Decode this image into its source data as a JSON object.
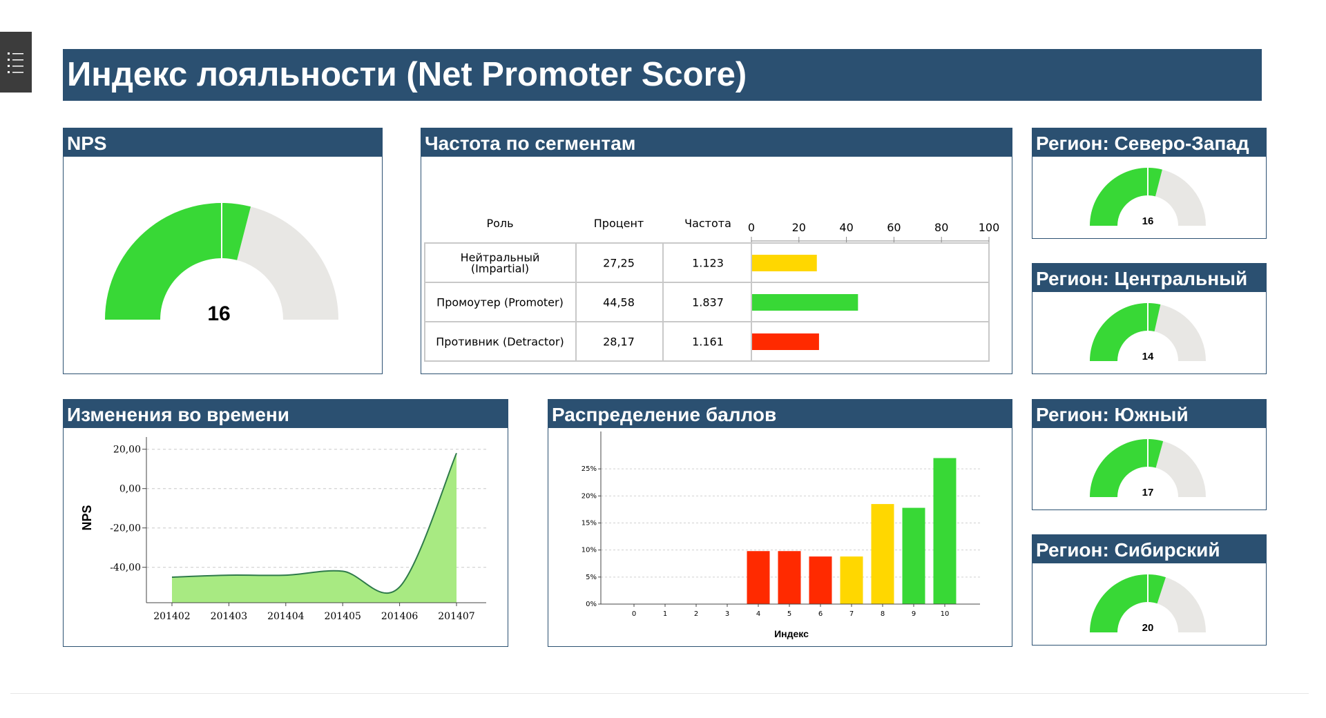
{
  "page_title": "Индекс лояльности (Net Promoter Score)",
  "colors": {
    "header": "#2b5071",
    "green": "#38d836",
    "gray": "#e8e7e4",
    "yellow": "#ffd700",
    "red": "#ff2a00",
    "area": "#a8ea82",
    "area_line": "#2e7a4a"
  },
  "nps": {
    "title": "NPS",
    "value": 16
  },
  "segments": {
    "title": "Частота по сегментам",
    "columns": [
      "Роль",
      "Процент",
      "Частота"
    ],
    "rows": [
      {
        "role_line1": "Нейтральный",
        "role_line2": "(Impartial)",
        "percent": "27,25",
        "freq": "1.123",
        "value": 27.25,
        "color": "#ffd700"
      },
      {
        "role_line1": "Промоутер (Promoter)",
        "role_line2": "",
        "percent": "44,58",
        "freq": "1.837",
        "value": 44.58,
        "color": "#38d836"
      },
      {
        "role_line1": "Противник (Detractor)",
        "role_line2": "",
        "percent": "28,17",
        "freq": "1.161",
        "value": 28.17,
        "color": "#ff2a00"
      }
    ],
    "axis_ticks": [
      "0",
      "20",
      "40",
      "60",
      "80",
      "100"
    ],
    "axis_max": 100
  },
  "regions": [
    {
      "title": "Регион: Северо-Запад",
      "value": 16
    },
    {
      "title": "Регион: Центральный",
      "value": 14
    },
    {
      "title": "Регион: Южный",
      "value": 17
    },
    {
      "title": "Регион: Сибирский",
      "value": 20
    }
  ],
  "chart_data": [
    {
      "type": "area",
      "title": "Изменения во времени",
      "ylabel": "NPS",
      "xlabel": "",
      "x": [
        "201402",
        "201403",
        "201404",
        "201405",
        "201406",
        "201407"
      ],
      "values": [
        -45,
        -44,
        -44,
        -42,
        -50,
        18
      ],
      "y_ticks": [
        "20,00",
        "0,00",
        "-20,00",
        "-40,00"
      ],
      "y_tick_values": [
        20,
        0,
        -20,
        -40
      ],
      "ylim": [
        -58,
        22
      ],
      "grid": true
    },
    {
      "type": "bar",
      "title": "Распределение баллов",
      "xlabel": "Индекс",
      "ylabel": "",
      "categories": [
        "0",
        "1",
        "2",
        "3",
        "4",
        "5",
        "6",
        "7",
        "8",
        "9",
        "10"
      ],
      "values": [
        0,
        0,
        0,
        0,
        9.8,
        9.8,
        8.8,
        8.8,
        18.5,
        17.8,
        27
      ],
      "colors": [
        "#ff2a00",
        "#ff2a00",
        "#ff2a00",
        "#ff2a00",
        "#ff2a00",
        "#ff2a00",
        "#ff2a00",
        "#ffd700",
        "#ffd700",
        "#38d836",
        "#38d836"
      ],
      "y_ticks": [
        "0%",
        "5%",
        "10%",
        "15%",
        "20%",
        "25%"
      ],
      "y_tick_values": [
        0,
        5,
        10,
        15,
        20,
        25
      ],
      "ylim": [
        0,
        30
      ],
      "grid": true
    }
  ]
}
